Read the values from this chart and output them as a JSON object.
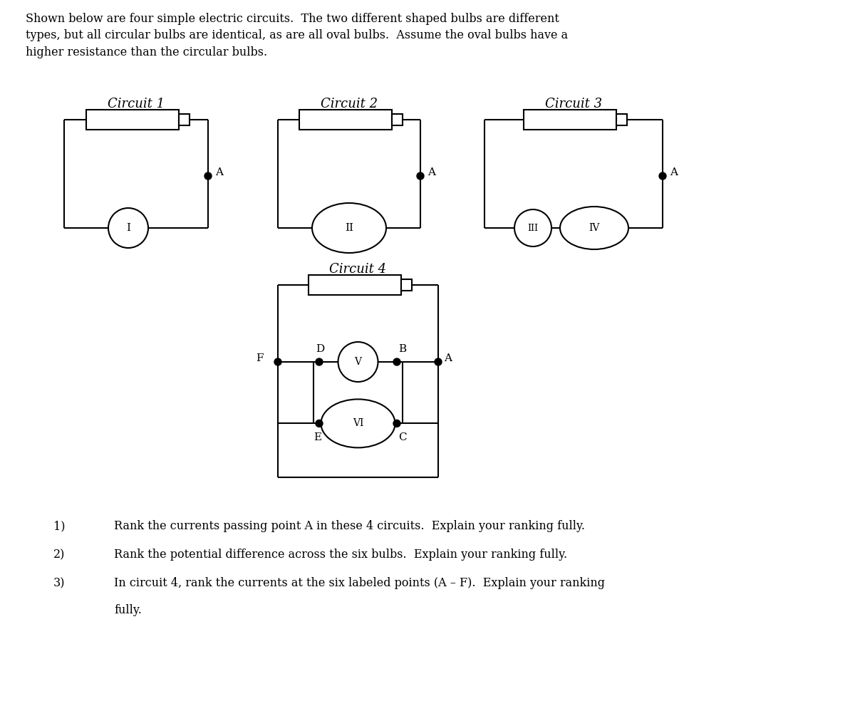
{
  "title_text": "Shown below are four simple electric circuits.  The two different shaped bulbs are different\ntypes, but all circular bulbs are identical, as are all oval bulbs.  Assume the oval bulbs have a\nhigher resistance than the circular bulbs.",
  "circuit1_title": "Circuit 1",
  "circuit2_title": "Circuit 2",
  "circuit3_title": "Circuit 3",
  "circuit4_title": "Circuit 4",
  "questions": [
    "Rank the currents passing point A in these 4 circuits.  Explain your ranking fully.",
    "Rank the potential difference across the six bulbs.  Explain your ranking fully.",
    "In circuit 4, rank the currents at the six labeled points (A – F).  Explain your ranking\nfully."
  ],
  "question_numbers": [
    "1)",
    "2)",
    "3)"
  ],
  "bg_color": "#ffffff",
  "line_color": "#000000",
  "lw": 1.5
}
